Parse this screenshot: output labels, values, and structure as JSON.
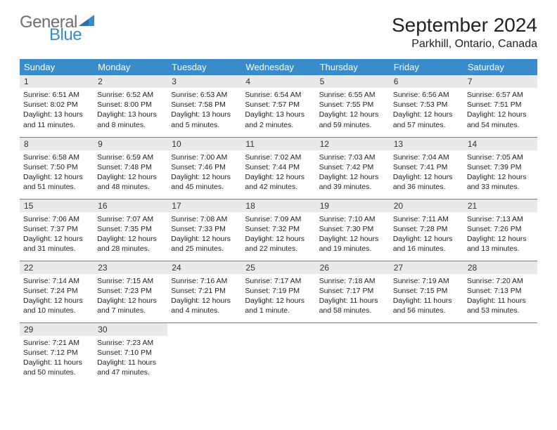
{
  "logo": {
    "line1": "General",
    "line2": "Blue",
    "color_gray": "#6e6e6e",
    "color_blue": "#3a8bc9"
  },
  "header": {
    "title": "September 2024",
    "location": "Parkhill, Ontario, Canada"
  },
  "daynames": [
    "Sunday",
    "Monday",
    "Tuesday",
    "Wednesday",
    "Thursday",
    "Friday",
    "Saturday"
  ],
  "colors": {
    "header_bg": "#3a8bc9",
    "daynum_bg": "#e9e9e9",
    "rule": "#3a8bc9",
    "text": "#222222"
  },
  "font": {
    "family": "Arial",
    "header_size_pt": 21,
    "location_size_pt": 12,
    "dayname_size_pt": 10,
    "body_size_pt": 8
  },
  "weeks": [
    [
      {
        "n": "1",
        "sunrise": "Sunrise: 6:51 AM",
        "sunset": "Sunset: 8:02 PM",
        "daylight": "Daylight: 13 hours and 11 minutes."
      },
      {
        "n": "2",
        "sunrise": "Sunrise: 6:52 AM",
        "sunset": "Sunset: 8:00 PM",
        "daylight": "Daylight: 13 hours and 8 minutes."
      },
      {
        "n": "3",
        "sunrise": "Sunrise: 6:53 AM",
        "sunset": "Sunset: 7:58 PM",
        "daylight": "Daylight: 13 hours and 5 minutes."
      },
      {
        "n": "4",
        "sunrise": "Sunrise: 6:54 AM",
        "sunset": "Sunset: 7:57 PM",
        "daylight": "Daylight: 13 hours and 2 minutes."
      },
      {
        "n": "5",
        "sunrise": "Sunrise: 6:55 AM",
        "sunset": "Sunset: 7:55 PM",
        "daylight": "Daylight: 12 hours and 59 minutes."
      },
      {
        "n": "6",
        "sunrise": "Sunrise: 6:56 AM",
        "sunset": "Sunset: 7:53 PM",
        "daylight": "Daylight: 12 hours and 57 minutes."
      },
      {
        "n": "7",
        "sunrise": "Sunrise: 6:57 AM",
        "sunset": "Sunset: 7:51 PM",
        "daylight": "Daylight: 12 hours and 54 minutes."
      }
    ],
    [
      {
        "n": "8",
        "sunrise": "Sunrise: 6:58 AM",
        "sunset": "Sunset: 7:50 PM",
        "daylight": "Daylight: 12 hours and 51 minutes."
      },
      {
        "n": "9",
        "sunrise": "Sunrise: 6:59 AM",
        "sunset": "Sunset: 7:48 PM",
        "daylight": "Daylight: 12 hours and 48 minutes."
      },
      {
        "n": "10",
        "sunrise": "Sunrise: 7:00 AM",
        "sunset": "Sunset: 7:46 PM",
        "daylight": "Daylight: 12 hours and 45 minutes."
      },
      {
        "n": "11",
        "sunrise": "Sunrise: 7:02 AM",
        "sunset": "Sunset: 7:44 PM",
        "daylight": "Daylight: 12 hours and 42 minutes."
      },
      {
        "n": "12",
        "sunrise": "Sunrise: 7:03 AM",
        "sunset": "Sunset: 7:42 PM",
        "daylight": "Daylight: 12 hours and 39 minutes."
      },
      {
        "n": "13",
        "sunrise": "Sunrise: 7:04 AM",
        "sunset": "Sunset: 7:41 PM",
        "daylight": "Daylight: 12 hours and 36 minutes."
      },
      {
        "n": "14",
        "sunrise": "Sunrise: 7:05 AM",
        "sunset": "Sunset: 7:39 PM",
        "daylight": "Daylight: 12 hours and 33 minutes."
      }
    ],
    [
      {
        "n": "15",
        "sunrise": "Sunrise: 7:06 AM",
        "sunset": "Sunset: 7:37 PM",
        "daylight": "Daylight: 12 hours and 31 minutes."
      },
      {
        "n": "16",
        "sunrise": "Sunrise: 7:07 AM",
        "sunset": "Sunset: 7:35 PM",
        "daylight": "Daylight: 12 hours and 28 minutes."
      },
      {
        "n": "17",
        "sunrise": "Sunrise: 7:08 AM",
        "sunset": "Sunset: 7:33 PM",
        "daylight": "Daylight: 12 hours and 25 minutes."
      },
      {
        "n": "18",
        "sunrise": "Sunrise: 7:09 AM",
        "sunset": "Sunset: 7:32 PM",
        "daylight": "Daylight: 12 hours and 22 minutes."
      },
      {
        "n": "19",
        "sunrise": "Sunrise: 7:10 AM",
        "sunset": "Sunset: 7:30 PM",
        "daylight": "Daylight: 12 hours and 19 minutes."
      },
      {
        "n": "20",
        "sunrise": "Sunrise: 7:11 AM",
        "sunset": "Sunset: 7:28 PM",
        "daylight": "Daylight: 12 hours and 16 minutes."
      },
      {
        "n": "21",
        "sunrise": "Sunrise: 7:13 AM",
        "sunset": "Sunset: 7:26 PM",
        "daylight": "Daylight: 12 hours and 13 minutes."
      }
    ],
    [
      {
        "n": "22",
        "sunrise": "Sunrise: 7:14 AM",
        "sunset": "Sunset: 7:24 PM",
        "daylight": "Daylight: 12 hours and 10 minutes."
      },
      {
        "n": "23",
        "sunrise": "Sunrise: 7:15 AM",
        "sunset": "Sunset: 7:23 PM",
        "daylight": "Daylight: 12 hours and 7 minutes."
      },
      {
        "n": "24",
        "sunrise": "Sunrise: 7:16 AM",
        "sunset": "Sunset: 7:21 PM",
        "daylight": "Daylight: 12 hours and 4 minutes."
      },
      {
        "n": "25",
        "sunrise": "Sunrise: 7:17 AM",
        "sunset": "Sunset: 7:19 PM",
        "daylight": "Daylight: 12 hours and 1 minute."
      },
      {
        "n": "26",
        "sunrise": "Sunrise: 7:18 AM",
        "sunset": "Sunset: 7:17 PM",
        "daylight": "Daylight: 11 hours and 58 minutes."
      },
      {
        "n": "27",
        "sunrise": "Sunrise: 7:19 AM",
        "sunset": "Sunset: 7:15 PM",
        "daylight": "Daylight: 11 hours and 56 minutes."
      },
      {
        "n": "28",
        "sunrise": "Sunrise: 7:20 AM",
        "sunset": "Sunset: 7:13 PM",
        "daylight": "Daylight: 11 hours and 53 minutes."
      }
    ],
    [
      {
        "n": "29",
        "sunrise": "Sunrise: 7:21 AM",
        "sunset": "Sunset: 7:12 PM",
        "daylight": "Daylight: 11 hours and 50 minutes."
      },
      {
        "n": "30",
        "sunrise": "Sunrise: 7:23 AM",
        "sunset": "Sunset: 7:10 PM",
        "daylight": "Daylight: 11 hours and 47 minutes."
      },
      null,
      null,
      null,
      null,
      null
    ]
  ]
}
